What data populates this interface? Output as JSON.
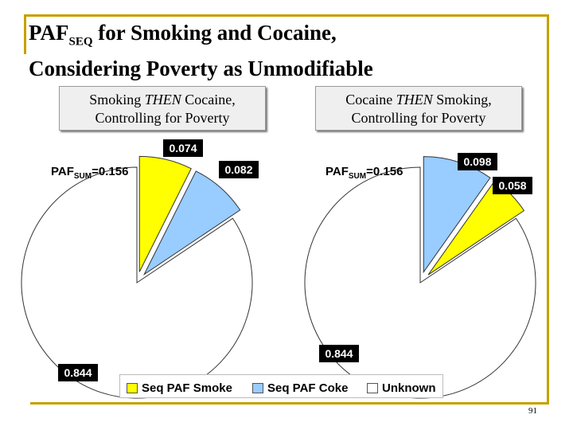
{
  "title": {
    "main": "PAF",
    "sub": "SEQ",
    "rest": " for Smoking and Cocaine,",
    "line2": "Considering Poverty as Unmodifiable"
  },
  "page_number": "91",
  "colors": {
    "smoke": "#ffff00",
    "coke": "#99ccff",
    "unknown": "#ffffff",
    "frame": "#c8a000"
  },
  "chart_data": [
    {
      "type": "pie",
      "title_line1": "Smoking THEN Cocaine,",
      "title_line2": "Controlling for Poverty",
      "sum_label": {
        "prefix": "PAF",
        "sub": "SUM",
        "suffix": "=0.156"
      },
      "slices": [
        {
          "name": "Seq PAF Smoke",
          "value": 0.074,
          "label": "0.074",
          "exploded": true
        },
        {
          "name": "Seq PAF Coke",
          "value": 0.082,
          "label": "0.082",
          "exploded": true
        },
        {
          "name": "Unknown",
          "value": 0.844,
          "label": "0.844",
          "exploded": false
        }
      ]
    },
    {
      "type": "pie",
      "title_line1": "Cocaine THEN Smoking,",
      "title_line2": "Controlling for Poverty",
      "sum_label": {
        "prefix": "PAF",
        "sub": "SUM",
        "suffix": "=0.156"
      },
      "slices": [
        {
          "name": "Seq PAF Coke",
          "value": 0.098,
          "label": "0.098",
          "exploded": true
        },
        {
          "name": "Seq PAF Smoke",
          "value": 0.058,
          "label": "0.058",
          "exploded": true
        },
        {
          "name": "Unknown",
          "value": 0.844,
          "label": "0.844",
          "exploded": false
        }
      ]
    }
  ],
  "legend": [
    {
      "label": "Seq PAF Smoke",
      "color": "#ffff00"
    },
    {
      "label": "Seq PAF Coke",
      "color": "#99ccff"
    },
    {
      "label": "Unknown",
      "color": "#ffffff"
    }
  ]
}
